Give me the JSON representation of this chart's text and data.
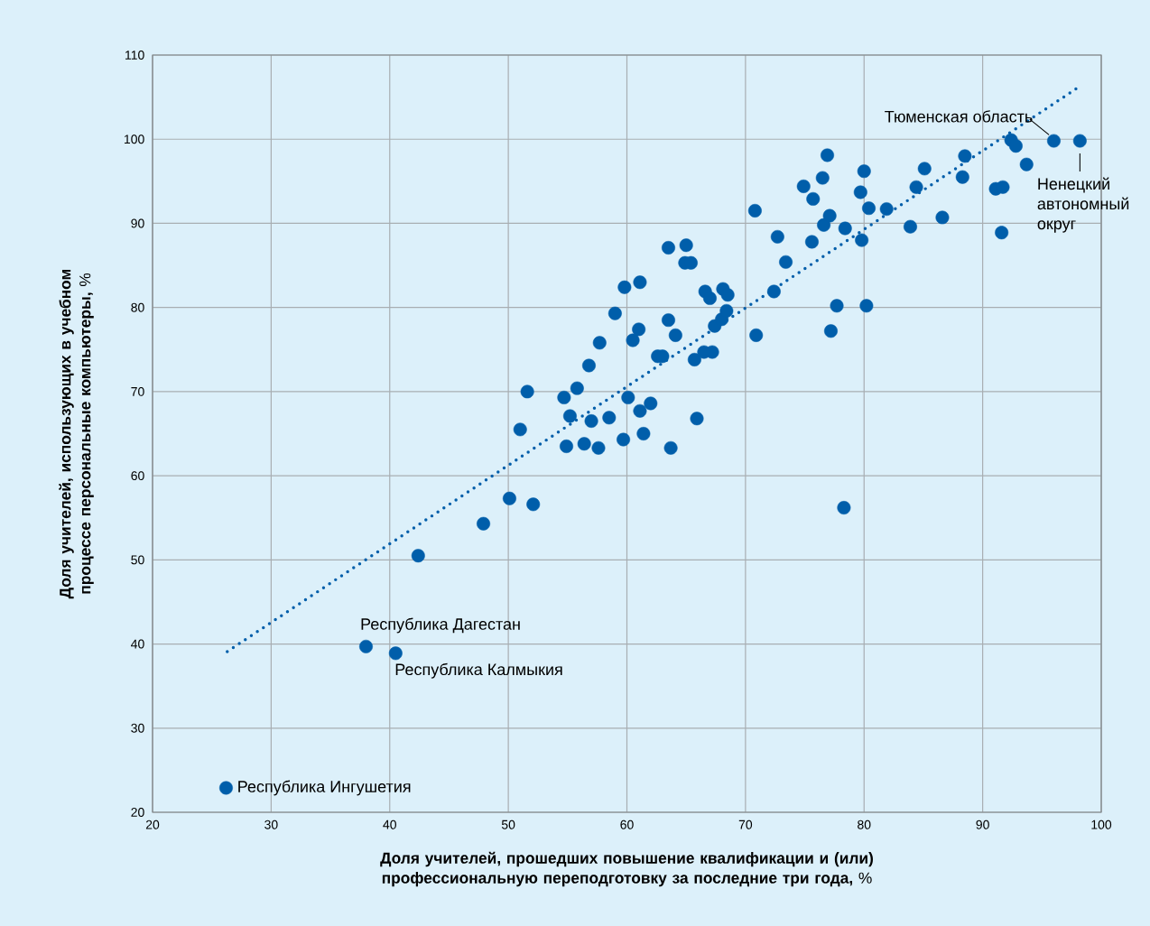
{
  "chart_data": {
    "type": "scatter",
    "xlabel": "**Доля учителей, прошедших повышение квалификации и (или) профессиональную переподготовку за последние три года,** %",
    "ylabel": "**Доля учителей, использующих в учебном процессе персональные компьютеры,** %",
    "xlim": [
      20,
      100
    ],
    "ylim": [
      20,
      110
    ],
    "xticks": [
      20,
      30,
      40,
      50,
      60,
      70,
      80,
      90,
      100
    ],
    "yticks": [
      20,
      30,
      40,
      50,
      60,
      70,
      80,
      90,
      100,
      110
    ],
    "grid": true,
    "marker": "circle",
    "series": [
      {
        "type": "scatter",
        "color": "#005eaa",
        "x": [
          26.2,
          38.0,
          40.5,
          42.4,
          47.9,
          50.1,
          52.1,
          51.0,
          51.6,
          54.7,
          54.9,
          55.2,
          55.8,
          56.4,
          57.0,
          56.8,
          57.6,
          57.7,
          58.5,
          59.0,
          59.8,
          59.7,
          60.1,
          60.5,
          61.0,
          61.1,
          61.1,
          61.4,
          62.0,
          62.6,
          63.0,
          63.5,
          63.5,
          63.7,
          64.1,
          64.9,
          65.0,
          65.4,
          65.7,
          65.9,
          66.5,
          66.6,
          67.0,
          67.2,
          67.4,
          68.0,
          68.1,
          68.4,
          68.5,
          70.8,
          70.9,
          72.4,
          72.7,
          73.4,
          74.9,
          75.7,
          75.6,
          76.5,
          76.6,
          76.9,
          77.1,
          77.2,
          77.7,
          78.4,
          78.3,
          79.7,
          79.8,
          80.0,
          80.2,
          80.4,
          81.9,
          83.9,
          84.4,
          85.1,
          86.6,
          88.3,
          88.5,
          91.1,
          91.7,
          91.6,
          92.4,
          92.8,
          93.7,
          96.0,
          98.2
        ],
        "values": [
          22.9,
          39.7,
          38.9,
          50.5,
          54.3,
          57.3,
          56.6,
          65.5,
          70.0,
          69.3,
          63.5,
          67.1,
          70.4,
          63.8,
          66.5,
          73.1,
          63.3,
          75.8,
          66.9,
          79.3,
          82.4,
          64.3,
          69.3,
          76.1,
          77.4,
          83.0,
          67.7,
          65.0,
          68.6,
          74.2,
          74.2,
          87.1,
          78.5,
          63.3,
          76.7,
          85.3,
          87.4,
          85.3,
          73.8,
          66.8,
          74.7,
          81.9,
          81.1,
          74.7,
          77.8,
          78.6,
          82.2,
          79.6,
          81.5,
          91.5,
          76.7,
          81.9,
          88.4,
          85.4,
          94.4,
          92.9,
          87.8,
          95.4,
          89.8,
          98.1,
          90.9,
          77.2,
          80.2,
          89.4,
          56.2,
          93.7,
          88.0,
          96.2,
          80.2,
          91.8,
          91.7,
          89.6,
          94.3,
          96.5,
          90.7,
          95.5,
          98.0,
          94.1,
          94.3,
          88.9,
          99.9,
          99.2,
          97.0,
          99.8,
          99.8
        ]
      },
      {
        "type": "line",
        "color": "#005eaa",
        "line_style": "dotted",
        "marker": "none",
        "x": [
          26.3,
          98.0
        ],
        "values": [
          39.1,
          106.1
        ]
      }
    ],
    "annotations": [
      {
        "text": "Республика Ингушетия",
        "x": 26.2,
        "y": 22.9
      },
      {
        "text": "Республика Дагестан",
        "x": 38.0,
        "y": 39.7
      },
      {
        "text": "Республика Калмыкия",
        "x": 40.5,
        "y": 38.9
      },
      {
        "text": "Тюменская область",
        "x": 96.0,
        "y": 99.8
      },
      {
        "text": "Ненецкий автономный округ",
        "x": 98.2,
        "y": 99.8
      }
    ]
  }
}
